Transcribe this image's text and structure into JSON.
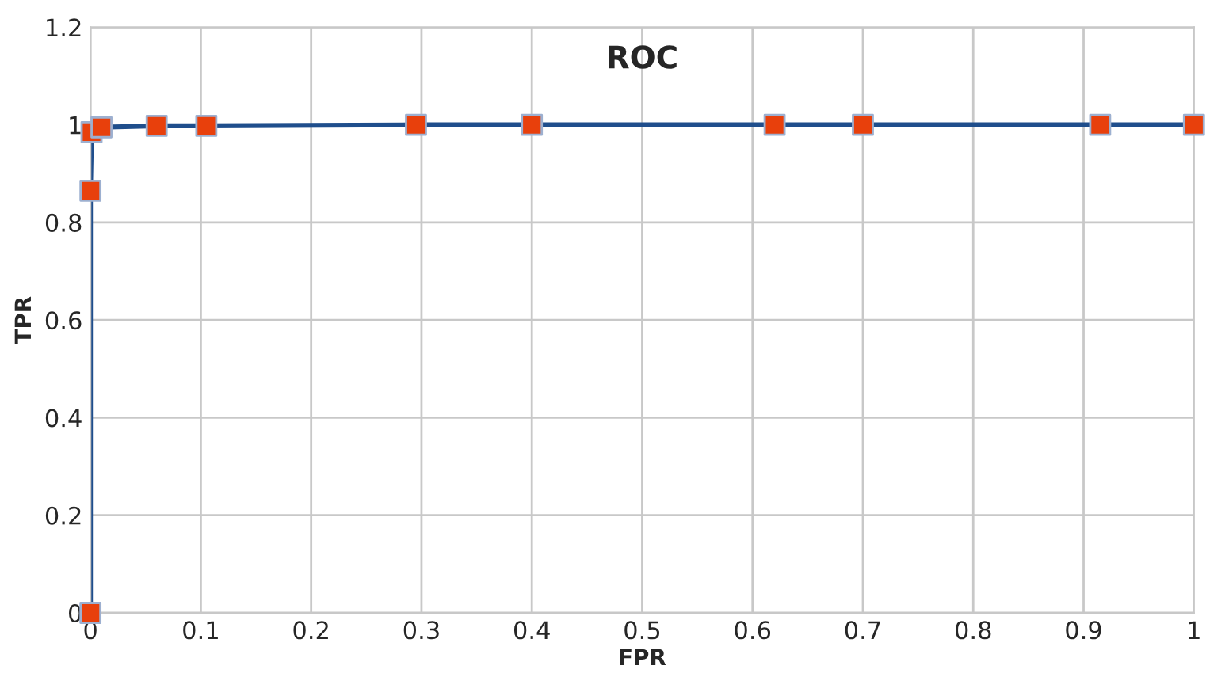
{
  "chart_data": {
    "type": "line",
    "title": "ROC",
    "xlabel": "FPR",
    "ylabel": "TPR",
    "series": [
      {
        "color": "#1f4e8c",
        "colors": [
          "#e8400c",
          "#e8400c",
          "#e8400c",
          "#e8400c",
          "#e8400c",
          "#e8400c",
          "#e8400c",
          "#e8400c",
          "#e8400c",
          "#e8400c",
          "#e8400c",
          "#e8400c"
        ],
        "x": [
          0,
          0,
          0.001,
          0.01,
          0.06,
          0.105,
          0.295,
          0.4,
          0.62,
          0.7,
          0.915,
          1
        ],
        "values": [
          0,
          0.865,
          0.985,
          0.995,
          0.998,
          0.998,
          1,
          1,
          1,
          1,
          1,
          1
        ]
      }
    ],
    "xlim": [
      0,
      1
    ],
    "xticks": [
      0,
      0.1,
      0.2,
      0.3,
      0.4,
      0.5,
      0.6,
      0.7,
      0.8,
      0.9,
      1
    ],
    "ylim": [
      0,
      1.2
    ],
    "yticks": [
      0,
      0.2,
      0.4,
      0.6,
      0.8,
      1,
      1.2
    ],
    "grid": true,
    "marker": "square",
    "line_style": "solid"
  }
}
